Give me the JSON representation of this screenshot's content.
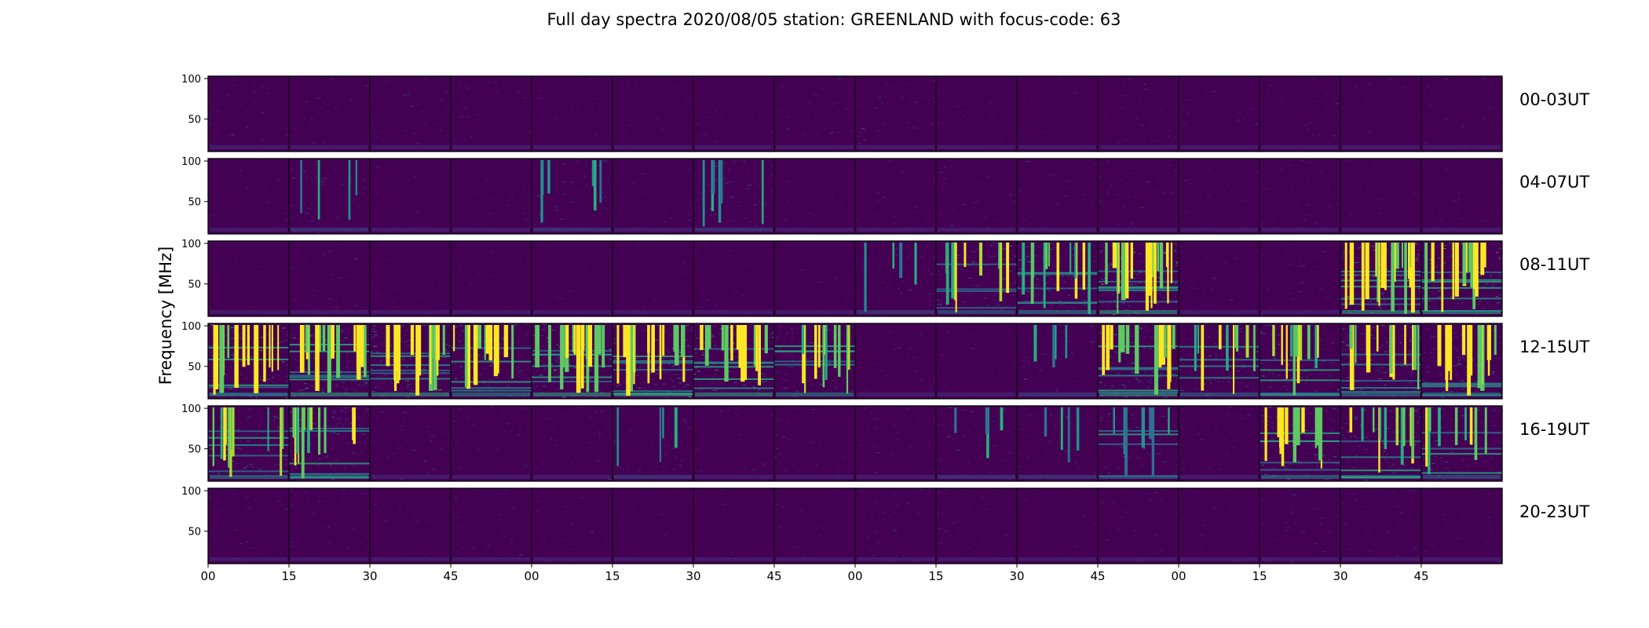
{
  "chart_data": {
    "type": "heatmap",
    "title": "Full day spectra 2020/08/05 station: GREENLAND with focus-code: 63",
    "ylabel": "Frequency [MHz]",
    "xlabel": "",
    "ylim": [
      10,
      103
    ],
    "y_ticks": [
      "100",
      "50"
    ],
    "x_ticks": [
      "00",
      "15",
      "30",
      "45",
      "00",
      "15",
      "30",
      "45",
      "00",
      "15",
      "30",
      "45",
      "00",
      "15",
      "30",
      "45"
    ],
    "row_labels": [
      "00-03UT",
      "04-07UT",
      "08-11UT",
      "12-15UT",
      "16-19UT",
      "20-23UT"
    ],
    "panels_per_row": 16,
    "colormap": [
      "#440154",
      "#472f7d",
      "#3b528b",
      "#2c728e",
      "#21918c",
      "#28ae80",
      "#5ec962",
      "#addc30",
      "#fde725"
    ],
    "background_color": "#440154",
    "rfi_intensity": [
      [
        1,
        1,
        1,
        1,
        0,
        0,
        0,
        1,
        1,
        0,
        0,
        1,
        1,
        1,
        0,
        1
      ],
      [
        0,
        2,
        0,
        0,
        3,
        1,
        3,
        0,
        1,
        1,
        1,
        1,
        0,
        1,
        0,
        0
      ],
      [
        0,
        1,
        0,
        0,
        0,
        0,
        0,
        0,
        2,
        5,
        6,
        9,
        1,
        1,
        9,
        8
      ],
      [
        7,
        8,
        9,
        7,
        9,
        8,
        8,
        6,
        1,
        0,
        2,
        8,
        5,
        6,
        7,
        7
      ],
      [
        6,
        6,
        1,
        1,
        1,
        2,
        1,
        1,
        1,
        2,
        2,
        4,
        1,
        7,
        6,
        5
      ],
      [
        1,
        1,
        0,
        1,
        0,
        0,
        0,
        0,
        1,
        1,
        0,
        1,
        0,
        1,
        1,
        0
      ]
    ]
  }
}
